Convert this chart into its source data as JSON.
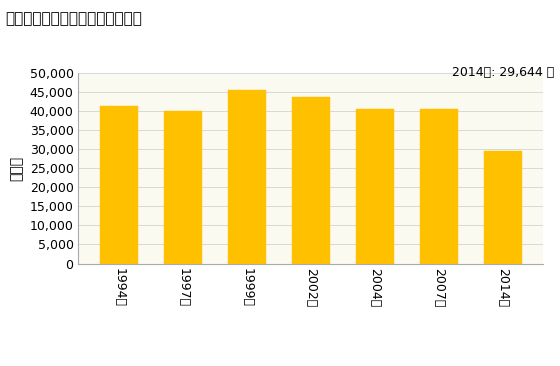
{
  "title": "その他の小売業の従業者数の推移",
  "ylabel": "［人］",
  "annotation": "2014年: 29,644 人",
  "categories": [
    "1994年",
    "1997年",
    "1999年",
    "2002年",
    "2004年",
    "2007年",
    "2014年"
  ],
  "values": [
    41500,
    40000,
    45500,
    43700,
    40600,
    40700,
    29644
  ],
  "bar_color": "#FFC000",
  "bar_edge_color": "#FFC000",
  "ylim": [
    0,
    50000
  ],
  "yticks": [
    0,
    5000,
    10000,
    15000,
    20000,
    25000,
    30000,
    35000,
    40000,
    45000,
    50000
  ],
  "background_color": "#FFFFFF",
  "plot_area_color": "#FAFAF0",
  "title_fontsize": 11,
  "axis_fontsize": 9,
  "annotation_fontsize": 9
}
